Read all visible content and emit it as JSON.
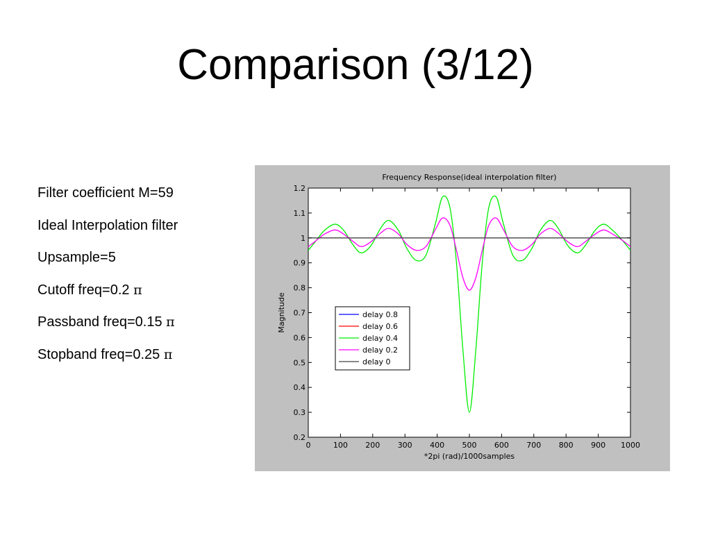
{
  "slide": {
    "title": "Comparison (3/12)",
    "bullets": [
      {
        "text": "Filter coefficient M=59",
        "suffix": ""
      },
      {
        "text": "Ideal Interpolation filter",
        "suffix": ""
      },
      {
        "text": "Upsample=5",
        "suffix": ""
      },
      {
        "text": "Cutoff freq=0.2 ",
        "suffix": "π"
      },
      {
        "text": "Passband freq=0.15 ",
        "suffix": "π"
      },
      {
        "text": "Stopband freq=0.25 ",
        "suffix": "π"
      }
    ]
  },
  "chart_data": {
    "type": "line",
    "title": "Frequency Response(ideal interpolation filter)",
    "xlabel": "*2pi (rad)/1000samples",
    "ylabel": "Magnitude",
    "xlim": [
      0,
      1000
    ],
    "ylim": [
      0.2,
      1.2
    ],
    "xticks": [
      0,
      100,
      200,
      300,
      400,
      500,
      600,
      700,
      800,
      900,
      1000
    ],
    "yticks": [
      0.2,
      0.3,
      0.4,
      0.5,
      0.6,
      0.7,
      0.8,
      0.9,
      1,
      1.1,
      1.2
    ],
    "grid": false,
    "legend_position": "lower-left",
    "x": [
      0,
      25,
      50,
      83,
      110,
      140,
      165,
      195,
      225,
      250,
      280,
      305,
      335,
      365,
      395,
      417,
      440,
      460,
      480,
      500,
      520,
      540,
      560,
      583,
      605,
      635,
      665,
      695,
      720,
      750,
      775,
      805,
      835,
      860,
      890,
      917,
      945,
      975,
      1000
    ],
    "series": [
      {
        "name": "delay 0.8",
        "color": "#0000ff",
        "values": null
      },
      {
        "name": "delay 0.6",
        "color": "#ff0000",
        "values": null
      },
      {
        "name": "delay 0.4",
        "color": "#00ee00",
        "values": [
          0.95,
          0.99,
          1.03,
          1.055,
          1.03,
          0.97,
          0.94,
          0.97,
          1.04,
          1.07,
          1.03,
          0.96,
          0.91,
          0.93,
          1.06,
          1.165,
          1.12,
          0.9,
          0.55,
          0.3,
          0.55,
          0.9,
          1.12,
          1.165,
          1.06,
          0.93,
          0.91,
          0.96,
          1.03,
          1.07,
          1.04,
          0.97,
          0.94,
          0.97,
          1.03,
          1.055,
          1.03,
          0.99,
          0.95
        ]
      },
      {
        "name": "delay 0.2",
        "color": "#ff00ff",
        "values": [
          0.965,
          0.99,
          1.015,
          1.032,
          1.015,
          0.985,
          0.965,
          0.985,
          1.02,
          1.038,
          1.015,
          0.975,
          0.95,
          0.965,
          1.035,
          1.08,
          1.05,
          0.95,
          0.84,
          0.79,
          0.84,
          0.95,
          1.05,
          1.08,
          1.035,
          0.965,
          0.95,
          0.975,
          1.015,
          1.038,
          1.02,
          0.985,
          0.965,
          0.985,
          1.015,
          1.032,
          1.015,
          0.99,
          0.965
        ]
      },
      {
        "name": "delay 0",
        "color": "#404040",
        "values": [
          1,
          1,
          1,
          1,
          1,
          1,
          1,
          1,
          1,
          1,
          1,
          1,
          1,
          1,
          1,
          1,
          1,
          1,
          1,
          1,
          1,
          1,
          1,
          1,
          1,
          1,
          1,
          1,
          1,
          1,
          1,
          1,
          1,
          1,
          1,
          1,
          1,
          1,
          1
        ]
      }
    ]
  }
}
